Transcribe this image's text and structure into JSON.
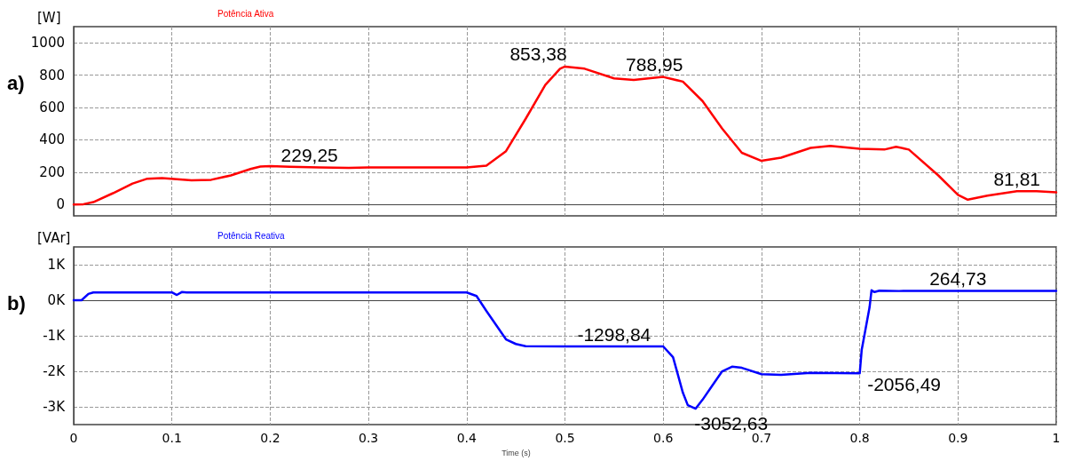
{
  "chart_data": [
    {
      "type": "line",
      "ylabel": "[W]",
      "xlim": [
        0,
        1
      ],
      "xticks": [
        0,
        0.1,
        0.2,
        0.3,
        0.4,
        0.5,
        0.6,
        0.7,
        0.8,
        0.9,
        1
      ],
      "ylim": [
        -70,
        1100
      ],
      "yticks": [
        0,
        200,
        400,
        600,
        800,
        1000
      ],
      "tick_labels": "y",
      "grid": true,
      "legend": "top left",
      "marker": "none",
      "line_style": "solid",
      "annotations": [
        "a)",
        {
          "text": "229,25",
          "x": 0.24,
          "y": 229.25
        },
        {
          "text": "853,38",
          "x": 0.5,
          "y": 853.38
        },
        {
          "text": "788,95",
          "x": 0.6,
          "y": 788.95
        },
        {
          "text": "81,81",
          "x": 0.96,
          "y": 81.81
        }
      ],
      "series": [
        {
          "name": "Potência Ativa",
          "color": "#ff0000",
          "x": [
            0,
            0.01,
            0.02,
            0.04,
            0.06,
            0.075,
            0.09,
            0.12,
            0.14,
            0.16,
            0.18,
            0.19,
            0.2,
            0.22,
            0.25,
            0.28,
            0.3,
            0.35,
            0.4,
            0.42,
            0.44,
            0.46,
            0.48,
            0.495,
            0.5,
            0.52,
            0.55,
            0.57,
            0.6,
            0.62,
            0.64,
            0.66,
            0.68,
            0.7,
            0.72,
            0.75,
            0.77,
            0.8,
            0.825,
            0.837,
            0.85,
            0.88,
            0.9,
            0.91,
            0.93,
            0.96,
            0.98,
            1
          ],
          "values": [
            0,
            2,
            15,
            70,
            130,
            160,
            163,
            150,
            153,
            180,
            220,
            235,
            238,
            233,
            229,
            226,
            229,
            229,
            229,
            240,
            330,
            530,
            740,
            840,
            853,
            840,
            780,
            770,
            789,
            760,
            640,
            470,
            320,
            270,
            290,
            350,
            363,
            345,
            340,
            357,
            340,
            180,
            60,
            30,
            55,
            82,
            82,
            75
          ]
        }
      ]
    },
    {
      "type": "line",
      "ylabel": "[VAr]",
      "xlabel": "Time (s)",
      "xlim": [
        0,
        1
      ],
      "xticks": [
        0,
        0.1,
        0.2,
        0.3,
        0.4,
        0.5,
        0.6,
        0.7,
        0.8,
        0.9,
        1
      ],
      "ylim": [
        -3500,
        1500
      ],
      "yticks": [
        {
          "value": -3000,
          "label": "-3K"
        },
        {
          "value": -2000,
          "label": "-2K"
        },
        {
          "value": -1000,
          "label": "-1K"
        },
        {
          "value": 0,
          "label": "0K"
        },
        {
          "value": 1000,
          "label": "1K"
        }
      ],
      "grid": true,
      "legend": "top left",
      "marker": "none",
      "line_style": "solid",
      "annotations": [
        "b)",
        {
          "text": "-1298,84",
          "x": 0.55,
          "y": -1298.84
        },
        {
          "text": "-3052,63",
          "x": 0.633,
          "y": -3052.63
        },
        {
          "text": "-2056,49",
          "x": 0.8,
          "y": -2056.49
        },
        {
          "text": "264,73",
          "x": 0.9,
          "y": 264.73
        }
      ],
      "series": [
        {
          "name": "Potência Reativa",
          "color": "#0000ff",
          "x": [
            0,
            0.008,
            0.015,
            0.02,
            0.1,
            0.105,
            0.11,
            0.115,
            0.4,
            0.41,
            0.42,
            0.43,
            0.44,
            0.45,
            0.46,
            0.5,
            0.6,
            0.61,
            0.62,
            0.625,
            0.633,
            0.64,
            0.65,
            0.66,
            0.67,
            0.68,
            0.7,
            0.72,
            0.75,
            0.8,
            0.802,
            0.81,
            0.812,
            0.815,
            0.82,
            0.84,
            1
          ],
          "values": [
            0,
            0,
            180,
            220,
            220,
            150,
            230,
            220,
            220,
            120,
            -300,
            -700,
            -1100,
            -1230,
            -1290,
            -1299,
            -1299,
            -1600,
            -2600,
            -2950,
            -3050,
            -2800,
            -2400,
            -2000,
            -1870,
            -1900,
            -2080,
            -2100,
            -2040,
            -2056,
            -1400,
            -200,
            280,
            230,
            270,
            260,
            265
          ]
        }
      ]
    }
  ]
}
